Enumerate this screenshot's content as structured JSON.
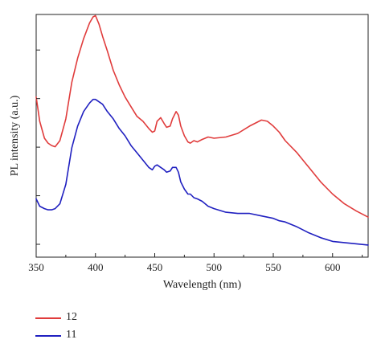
{
  "chart_data": {
    "type": "line",
    "title": "",
    "xlabel": "Wavelength (nm)",
    "ylabel": "PL intensity (a.u.)",
    "xlim": [
      350,
      630
    ],
    "ylim": [
      0,
      100
    ],
    "xticks": [
      350,
      400,
      450,
      500,
      550,
      600
    ],
    "yticks_unlabeled": 5,
    "grid": false,
    "legend_position": "bottom-left",
    "series": [
      {
        "name": "12",
        "color": "#e03c3c",
        "x": [
          350,
          353,
          357,
          360,
          363,
          366,
          370,
          375,
          380,
          385,
          390,
          395,
          398,
          400,
          403,
          406,
          410,
          415,
          420,
          425,
          430,
          435,
          440,
          445,
          448,
          450,
          452,
          455,
          458,
          460,
          463,
          465,
          468,
          470,
          472,
          475,
          478,
          480,
          483,
          486,
          490,
          495,
          500,
          510,
          520,
          530,
          540,
          545,
          550,
          555,
          560,
          570,
          580,
          590,
          600,
          610,
          620,
          630
        ],
        "values": [
          66,
          56,
          49,
          47,
          46,
          45.5,
          48,
          57,
          72,
          82,
          90,
          96.5,
          99,
          99.5,
          96,
          91,
          85,
          77,
          71,
          66,
          62,
          58,
          56,
          53,
          51.5,
          52,
          56,
          57.5,
          55,
          53.5,
          54,
          57,
          60,
          58.5,
          54,
          50,
          47.5,
          47,
          48,
          47.5,
          48.5,
          49.5,
          49,
          49.5,
          51,
          54,
          56.5,
          56,
          54,
          51.5,
          48,
          43,
          37,
          31,
          26,
          22,
          19,
          16.5
        ]
      },
      {
        "name": "11",
        "color": "#2020c0",
        "x": [
          350,
          353,
          357,
          360,
          363,
          366,
          370,
          375,
          380,
          385,
          390,
          395,
          398,
          400,
          403,
          406,
          410,
          415,
          420,
          425,
          430,
          435,
          440,
          445,
          448,
          450,
          452,
          455,
          458,
          460,
          463,
          465,
          468,
          470,
          472,
          475,
          478,
          480,
          483,
          486,
          490,
          495,
          500,
          510,
          520,
          530,
          540,
          545,
          550,
          555,
          560,
          570,
          580,
          590,
          600,
          610,
          620,
          630
        ],
        "values": [
          24,
          21,
          20,
          19.5,
          19.5,
          20,
          22,
          30,
          45,
          54,
          60,
          63.5,
          65,
          65,
          64,
          63,
          60,
          57,
          53,
          50,
          46,
          43,
          40,
          37,
          36,
          37.5,
          38,
          37,
          36,
          35,
          35.5,
          37,
          37,
          35,
          31,
          28,
          26,
          26,
          24.5,
          24,
          23,
          21,
          20,
          18.5,
          18,
          18,
          17,
          16.5,
          16,
          15,
          14.5,
          12.5,
          10,
          8,
          6.5,
          6,
          5.5,
          5
        ]
      }
    ]
  }
}
